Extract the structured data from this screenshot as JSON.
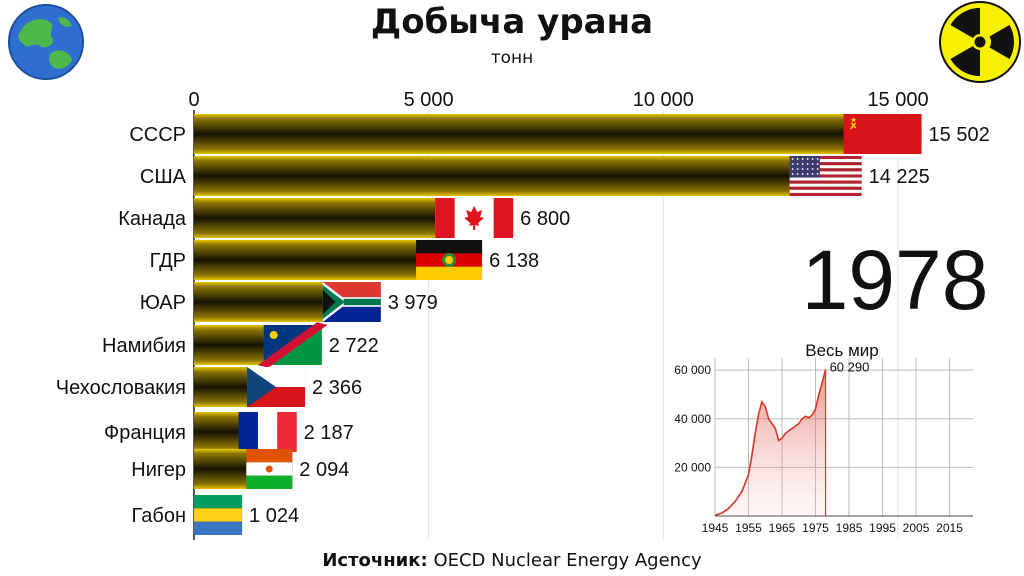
{
  "header": {
    "title": "Добыча урана",
    "subtitle": "тонн"
  },
  "year_label": "1978",
  "source": {
    "prefix": "Источник:",
    "text": "OECD Nuclear Energy Agency"
  },
  "logos": {
    "left": "earth-globe-icon",
    "right": "radiation-trefoil-icon"
  },
  "colors": {
    "bar_dark": "#151200",
    "bar_light": "#e8c400",
    "world_line": "#d9362b",
    "world_fill": "#f3c6c2"
  },
  "chart_data": [
    {
      "type": "bar",
      "orientation": "horizontal",
      "title": "Добыча урана",
      "subtitle": "тонн",
      "categories": [
        "СССР",
        "США",
        "Канада",
        "ГДР",
        "ЮАР",
        "Намибия",
        "Чехословакия",
        "Франция",
        "Нигер",
        "Габон"
      ],
      "values": [
        15502,
        14225,
        6800,
        6138,
        3979,
        2722,
        2366,
        2187,
        2094,
        1024
      ],
      "value_labels": [
        "15 502",
        "14 225",
        "6 800",
        "6 138",
        "3 979",
        "2 722",
        "2 366",
        "2 187",
        "2 094",
        "1 024"
      ],
      "flags": [
        "ussr-flag-icon",
        "usa-flag-icon",
        "canada-flag-icon",
        "gdr-flag-icon",
        "south-africa-flag-icon",
        "namibia-flag-icon",
        "czechoslovakia-flag-icon",
        "france-flag-icon",
        "niger-flag-icon",
        "gabon-flag-icon"
      ],
      "x_ticks": [
        0,
        5000,
        10000,
        15000
      ],
      "x_tick_labels": [
        "0",
        "5 000",
        "10 000",
        "15 000"
      ],
      "xlim": [
        0,
        15600
      ],
      "axis_position": "top",
      "grid": true
    },
    {
      "type": "area",
      "title": "Весь мир",
      "x": [
        1945,
        1947,
        1949,
        1951,
        1953,
        1955,
        1956,
        1957,
        1958,
        1959,
        1960,
        1961,
        1962,
        1963,
        1964,
        1965,
        1966,
        1967,
        1968,
        1969,
        1970,
        1971,
        1972,
        1973,
        1974,
        1975,
        1976,
        1977,
        1978
      ],
      "y": [
        300,
        1200,
        3000,
        6000,
        10000,
        17000,
        25000,
        34000,
        42000,
        47000,
        45000,
        40000,
        38000,
        36000,
        31000,
        32000,
        34000,
        35000,
        36000,
        37000,
        38000,
        40000,
        41000,
        40500,
        41500,
        44000,
        50000,
        55000,
        60290
      ],
      "x_ticks": [
        1945,
        1955,
        1965,
        1975,
        1985,
        1995,
        2005,
        2015
      ],
      "x_tick_labels": [
        "1945",
        "1955",
        "1965",
        "1975",
        "1985",
        "1995",
        "2005",
        "2015"
      ],
      "y_ticks": [
        20000,
        40000,
        60000
      ],
      "y_tick_labels": [
        "20 000",
        "40 000",
        "60 000"
      ],
      "xlim": [
        1945,
        2022
      ],
      "ylim": [
        0,
        65000
      ],
      "annotation": "60 290",
      "grid": true
    }
  ]
}
